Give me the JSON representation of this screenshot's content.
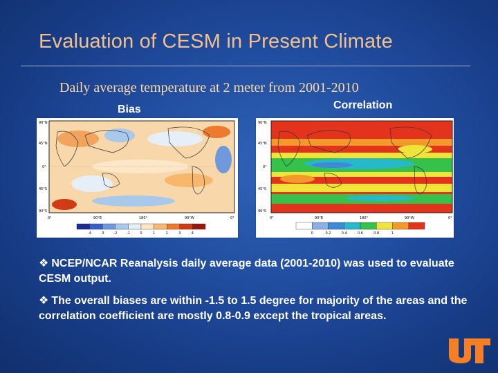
{
  "slide": {
    "title": "Evaluation of CESM in Present Climate",
    "subtitle": "Daily average temperature at 2 meter from 2001-2010"
  },
  "figures": {
    "bias": {
      "label": "Bias",
      "lat_labels": [
        "90°N",
        "45°N",
        "0°",
        "45°S",
        "90°S"
      ],
      "lon_labels": [
        "0°",
        "90°E",
        "180°",
        "90°W",
        "0°"
      ],
      "colorbar_ticks": [
        "-4",
        "-3",
        "-2",
        "-1",
        "0",
        "1",
        "2",
        "3",
        "4"
      ],
      "colorbar_colors": [
        "#1b2c8f",
        "#3a5fc4",
        "#6f98dd",
        "#a8c8ec",
        "#e6eef8",
        "#fde7c8",
        "#f7b86e",
        "#ec7b30",
        "#cf3b14",
        "#9c1610"
      ]
    },
    "correlation": {
      "label": "Correlation",
      "lat_labels": [
        "90°N",
        "45°N",
        "0°",
        "45°S",
        "90°S"
      ],
      "lon_labels": [
        "0°",
        "90°E",
        "180°",
        "90°W",
        "0°"
      ],
      "colorbar_ticks": [
        "0",
        "0.2",
        "0.4",
        "0.6",
        "0.8",
        "1"
      ],
      "colorbar_colors": [
        "#ffffff",
        "#8bb0e3",
        "#3e8ad6",
        "#27b9c9",
        "#35c14a",
        "#f0e33a",
        "#f39a2a",
        "#e3331c"
      ]
    }
  },
  "bullets": [
    {
      "icon": "❖",
      "text": "NCEP/NCAR Reanalysis daily average data (2001-2010) was used to evaluate CESM output."
    },
    {
      "icon": "❖",
      "text": "The overall biases are within -1.5 to 1.5 degree for majority of the areas and the correlation coefficient are mostly 0.8-0.9 except the tropical areas."
    }
  ],
  "logo": {
    "name": "ut-logo",
    "text": "UT",
    "color": "#f47f24"
  },
  "colors": {
    "title": "#f3c08a",
    "subtitle": "#ffd9a0",
    "accent": "#f47f24"
  }
}
